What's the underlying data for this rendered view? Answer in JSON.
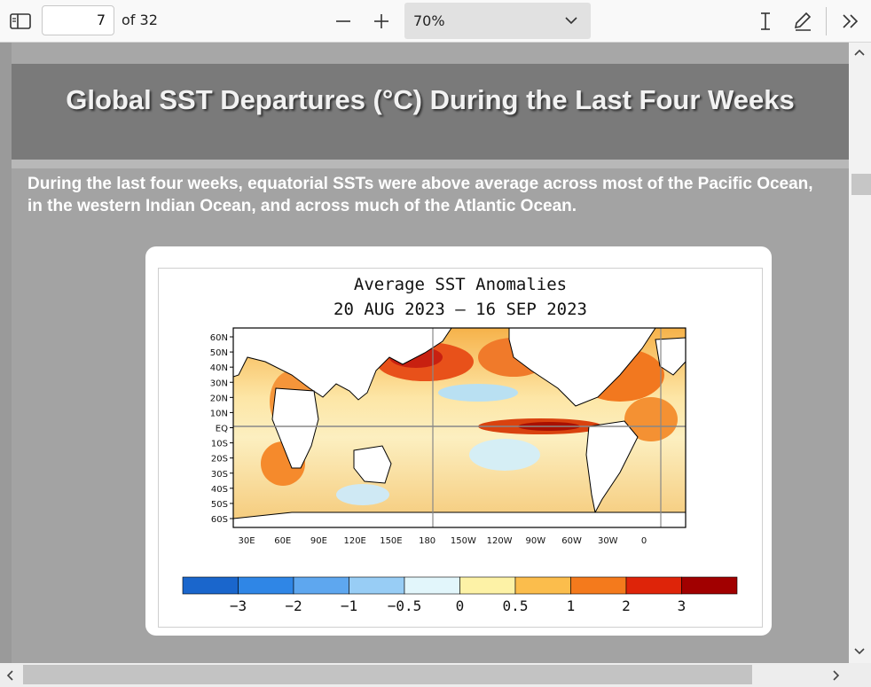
{
  "toolbar": {
    "page_number": "7",
    "page_of": "of 32",
    "zoom_minus": "—",
    "zoom_plus": "+",
    "zoom_value": "70%"
  },
  "slide": {
    "title": "Global SST Departures (°C) During the Last Four Weeks",
    "description_line1": "During the last four weeks, equatorial SSTs were above average across most of the Pacific Ocean,",
    "description_line2": "in the western Indian Ocean, and across much of the Atlantic Ocean."
  },
  "figure": {
    "title_line1": "Average SST Anomalies",
    "title_line2": "20 AUG 2023 — 16 SEP 2023",
    "lat_labels": [
      "60N",
      "50N",
      "40N",
      "30N",
      "20N",
      "10N",
      "EQ",
      "10S",
      "20S",
      "30S",
      "40S",
      "50S",
      "60S"
    ],
    "lon_labels": [
      "30E",
      "60E",
      "90E",
      "120E",
      "150E",
      "180",
      "150W",
      "120W",
      "90W",
      "60W",
      "30W",
      "0"
    ],
    "colorbar_colors": [
      "#1a66cc",
      "#2f86e6",
      "#5ea7ef",
      "#98cdf5",
      "#e2f6fb",
      "#fdf2a6",
      "#fbbd4c",
      "#f47a1c",
      "#de2409",
      "#a10000"
    ],
    "colorbar_labels": [
      "−3",
      "−2",
      "−1",
      "−0.5",
      "0",
      "0.5",
      "1",
      "2",
      "3"
    ]
  },
  "colors": {
    "toolbar_bg": "#f9f9f9",
    "page_bg": "#a3a3a3",
    "title_band": "#7a7a7a"
  }
}
